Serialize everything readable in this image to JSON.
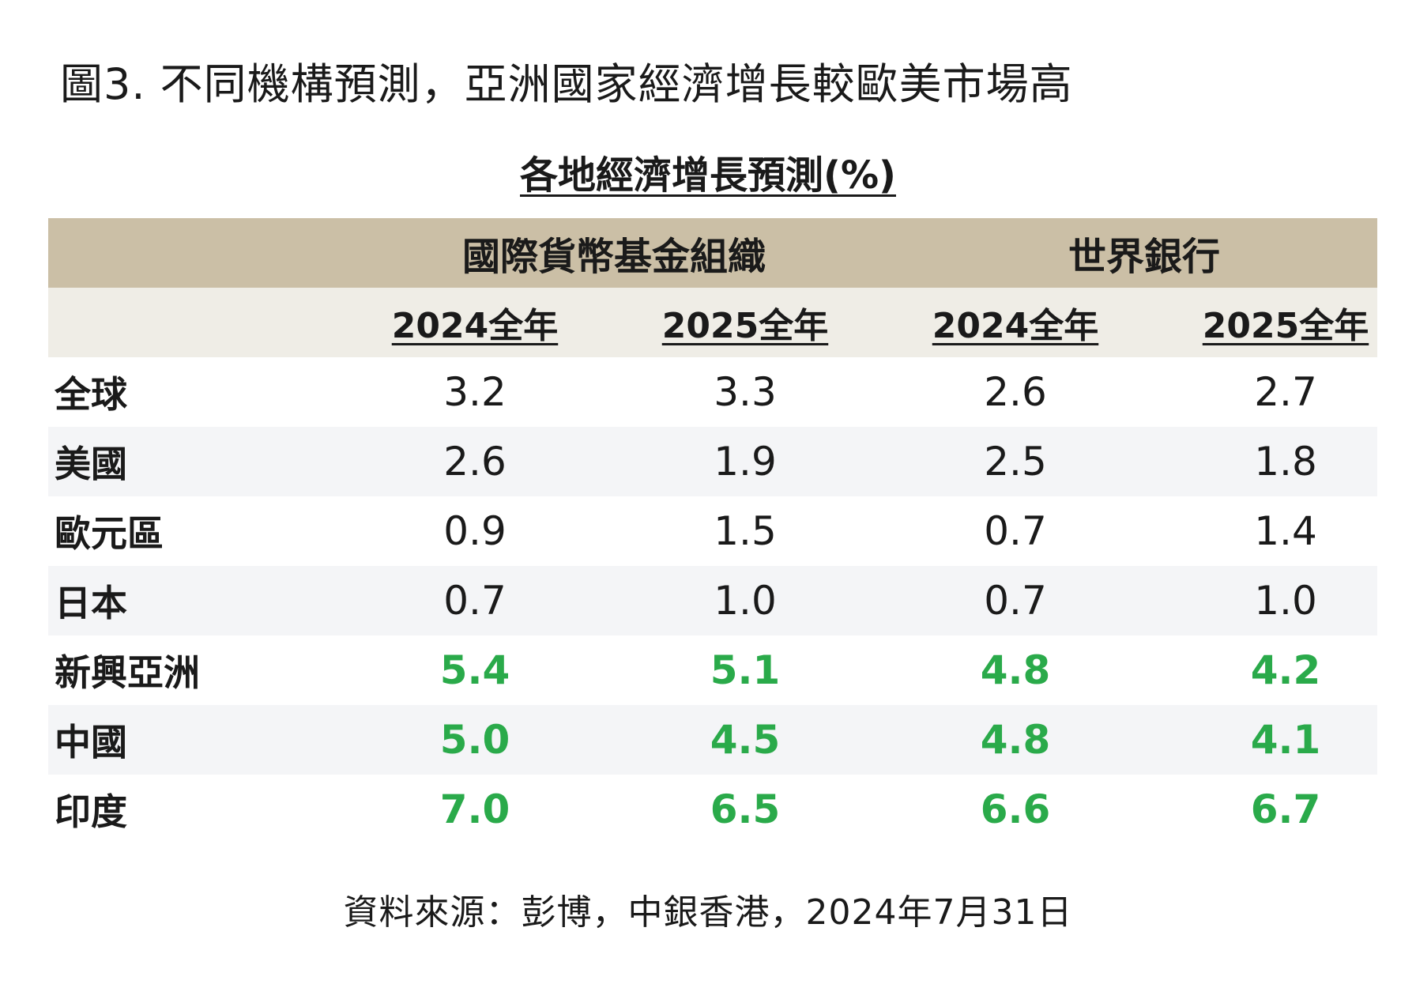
{
  "figure_title": "圖3. 不同機構預測，亞洲國家經濟增長較歐美市場高",
  "source": "資料來源：彭博，中銀香港，2024年7月31日",
  "colors": {
    "header_group": "#cbbfa6",
    "header_years": "#efede6",
    "row_shade": "#f4f5f7",
    "highlight": "#2aaa4a"
  },
  "chart_data": {
    "type": "table",
    "title": "各地經濟增長預測(%)",
    "column_groups": [
      {
        "name": "國際貨幣基金組織",
        "columns": [
          "2024全年",
          "2025全年"
        ]
      },
      {
        "name": "世界銀行",
        "columns": [
          "2024全年",
          "2025全年"
        ]
      }
    ],
    "rows": [
      {
        "label": "全球",
        "values": [
          "3.2",
          "3.3",
          "2.6",
          "2.7"
        ],
        "highlight": false
      },
      {
        "label": "美國",
        "values": [
          "2.6",
          "1.9",
          "2.5",
          "1.8"
        ],
        "highlight": false
      },
      {
        "label": "歐元區",
        "values": [
          "0.9",
          "1.5",
          "0.7",
          "1.4"
        ],
        "highlight": false
      },
      {
        "label": "日本",
        "values": [
          "0.7",
          "1.0",
          "0.7",
          "1.0"
        ],
        "highlight": false
      },
      {
        "label": "新興亞洲",
        "values": [
          "5.4",
          "5.1",
          "4.8",
          "4.2"
        ],
        "highlight": true
      },
      {
        "label": "中國",
        "values": [
          "5.0",
          "4.5",
          "4.8",
          "4.1"
        ],
        "highlight": true
      },
      {
        "label": "印度",
        "values": [
          "7.0",
          "6.5",
          "6.6",
          "6.7"
        ],
        "highlight": true
      }
    ]
  }
}
